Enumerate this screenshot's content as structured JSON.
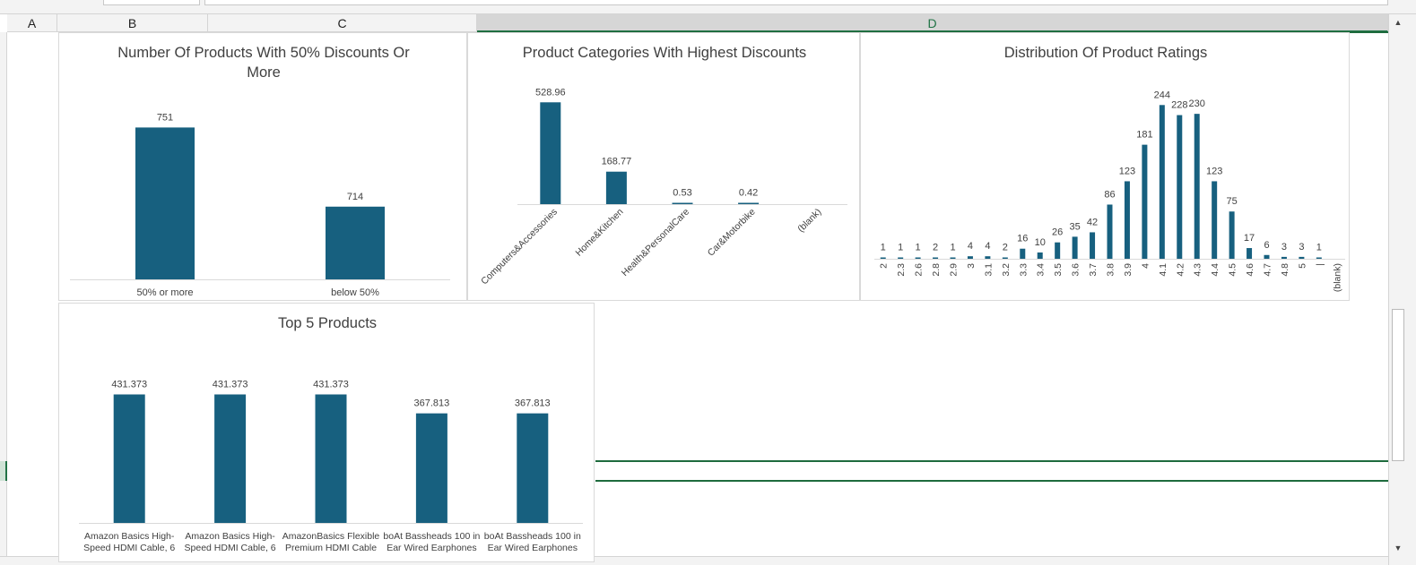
{
  "sheet": {
    "columns": [
      {
        "key": "A",
        "label": "A"
      },
      {
        "key": "B",
        "label": "B"
      },
      {
        "key": "C",
        "label": "C"
      },
      {
        "key": "D",
        "label": "D"
      }
    ],
    "accent": "#217346",
    "bar_color": "#17607f"
  },
  "charts": [
    {
      "id": "discount50",
      "chart_data": {
        "type": "bar",
        "title": "Number Of Products With 50% Discounts Or More",
        "title_lines": [
          "Number Of Products With 50% Discounts Or",
          "More"
        ],
        "categories": [
          "50% or more",
          "below 50%"
        ],
        "values": [
          751,
          714
        ],
        "value_labels": [
          "751",
          "714"
        ],
        "ylim": [
          680,
          770
        ]
      }
    },
    {
      "id": "categories",
      "chart_data": {
        "type": "bar",
        "title": "Product Categories With Highest Discounts",
        "categories": [
          "Computers&Accessories",
          "Home&Kitchen",
          "Health&PersonalCare",
          "Car&Motorbike",
          "(blank)"
        ],
        "values": [
          528.96,
          168.77,
          0.53,
          0.42,
          null
        ],
        "value_labels": [
          "528.96",
          "168.77",
          "0.53",
          "0.42",
          ""
        ],
        "ylim": [
          0,
          600
        ]
      }
    },
    {
      "id": "ratings",
      "chart_data": {
        "type": "bar",
        "title": "Distribution Of Product Ratings",
        "categories": [
          "2",
          "2.3",
          "2.6",
          "2.8",
          "2.9",
          "3",
          "3.1",
          "3.2",
          "3.3",
          "3.4",
          "3.5",
          "3.6",
          "3.7",
          "3.8",
          "3.9",
          "4",
          "4.1",
          "4.2",
          "4.3",
          "4.4",
          "4.5",
          "4.6",
          "4.7",
          "4.8",
          "5",
          "|",
          "(blank)"
        ],
        "values": [
          1,
          1,
          1,
          2,
          1,
          4,
          4,
          2,
          16,
          10,
          26,
          35,
          42,
          86,
          123,
          181,
          244,
          228,
          230,
          123,
          75,
          17,
          6,
          3,
          3,
          1,
          null
        ],
        "value_labels": [
          "1",
          "1",
          "1",
          "2",
          "1",
          "4",
          "4",
          "2",
          "16",
          "10",
          "26",
          "35",
          "42",
          "86",
          "123",
          "181",
          "244",
          "228",
          "230",
          "123",
          "75",
          "17",
          "6",
          "3",
          "3",
          "1",
          ""
        ],
        "ylim": [
          0,
          270
        ]
      }
    },
    {
      "id": "top5",
      "chart_data": {
        "type": "bar",
        "title": "Top 5 Products",
        "categories": [
          [
            "Amazon Basics High-",
            "Speed HDMI Cable, 6"
          ],
          [
            "Amazon Basics High-",
            "Speed HDMI Cable, 6"
          ],
          [
            "AmazonBasics Flexible",
            "Premium HDMI Cable"
          ],
          [
            "boAt Bassheads 100 in",
            "Ear Wired Earphones"
          ],
          [
            "boAt Bassheads 100 in",
            "Ear Wired Earphones"
          ]
        ],
        "values": [
          431.373,
          431.373,
          431.373,
          367.813,
          367.813
        ],
        "value_labels": [
          "431.373",
          "431.373",
          "431.373",
          "367.813",
          "367.813"
        ],
        "ylim": [
          0,
          490
        ]
      }
    }
  ]
}
